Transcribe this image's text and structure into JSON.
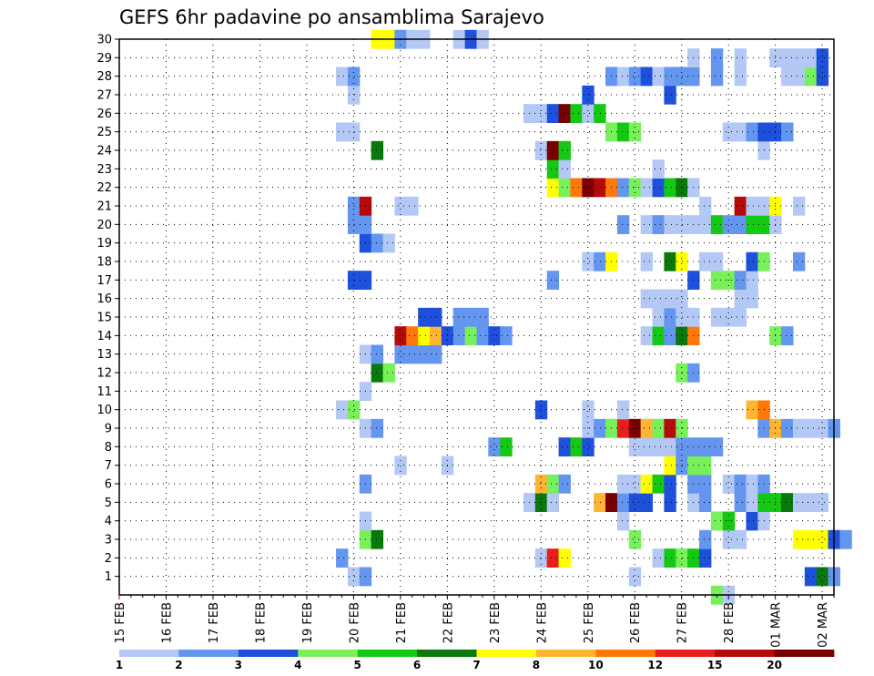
{
  "chart_data": {
    "type": "heatmap",
    "title": "GEFS 6hr padavine po ansamblima Sarajevo",
    "y_ticks": [
      "1",
      "2",
      "3",
      "4",
      "5",
      "6",
      "7",
      "8",
      "9",
      "10",
      "11",
      "12",
      "13",
      "14",
      "15",
      "16",
      "17",
      "18",
      "19",
      "20",
      "21",
      "22",
      "23",
      "24",
      "25",
      "26",
      "27",
      "28",
      "29",
      "30"
    ],
    "x_ticks": [
      "15 FEB",
      "16 FEB",
      "17 FEB",
      "18 FEB",
      "19 FEB",
      "20 FEB",
      "21 FEB",
      "22 FEB",
      "23 FEB",
      "24 FEB",
      "25 FEB",
      "26 FEB",
      "27 FEB",
      "28 FEB",
      "01 MAR",
      "02 MAR"
    ],
    "colorbar": {
      "labels": [
        "1",
        "2",
        "3",
        "4",
        "5",
        "6",
        "7",
        "8",
        "10",
        "12",
        "15",
        "20"
      ],
      "colors": [
        "#b4c8f5",
        "#6496f0",
        "#1e50dc",
        "#78f05a",
        "#14c814",
        "#0a780a",
        "#ffff00",
        "#ffb432",
        "#ff780a",
        "#e61e1e",
        "#b40a0a",
        "#780000"
      ]
    },
    "cells": [
      [
        1,
        20.0,
        1
      ],
      [
        1,
        20.25,
        2
      ],
      [
        1,
        26.0,
        1
      ],
      [
        1,
        29.75,
        3
      ],
      [
        1,
        30.0,
        6
      ],
      [
        1,
        30.25,
        2
      ],
      [
        2,
        19.75,
        2
      ],
      [
        2,
        24.0,
        1
      ],
      [
        2,
        24.25,
        10
      ],
      [
        2,
        24.5,
        7
      ],
      [
        2,
        26.5,
        1
      ],
      [
        2,
        26.75,
        5
      ],
      [
        2,
        27.0,
        4
      ],
      [
        2,
        27.25,
        5
      ],
      [
        2,
        27.5,
        3
      ],
      [
        3,
        20.25,
        4
      ],
      [
        3,
        20.5,
        6
      ],
      [
        3,
        26.0,
        4
      ],
      [
        3,
        27.5,
        2
      ],
      [
        3,
        28.0,
        1
      ],
      [
        3,
        28.25,
        1
      ],
      [
        3,
        29.5,
        7
      ],
      [
        3,
        29.75,
        7
      ],
      [
        3,
        30.0,
        7
      ],
      [
        3,
        30.25,
        3
      ],
      [
        3,
        30.5,
        2
      ],
      [
        4,
        20.25,
        1
      ],
      [
        4,
        25.75,
        1
      ],
      [
        4,
        27.75,
        4
      ],
      [
        4,
        28.0,
        5
      ],
      [
        4,
        28.5,
        3
      ],
      [
        4,
        28.75,
        1
      ],
      [
        5,
        23.75,
        1
      ],
      [
        5,
        24.0,
        6
      ],
      [
        5,
        24.25,
        1
      ],
      [
        5,
        25.25,
        8
      ],
      [
        5,
        25.5,
        12
      ],
      [
        5,
        25.75,
        2
      ],
      [
        5,
        26.0,
        3
      ],
      [
        5,
        26.25,
        3
      ],
      [
        5,
        26.75,
        3
      ],
      [
        5,
        27.25,
        1
      ],
      [
        5,
        27.5,
        2
      ],
      [
        5,
        28.25,
        2
      ],
      [
        5,
        28.5,
        1
      ],
      [
        5,
        28.75,
        5
      ],
      [
        5,
        29.0,
        5
      ],
      [
        5,
        29.25,
        6
      ],
      [
        5,
        29.5,
        1
      ],
      [
        5,
        29.75,
        1
      ],
      [
        5,
        30.0,
        1
      ],
      [
        6,
        20.25,
        2
      ],
      [
        6,
        24.0,
        8
      ],
      [
        6,
        24.25,
        4
      ],
      [
        6,
        24.5,
        2
      ],
      [
        6,
        25.75,
        1
      ],
      [
        6,
        26.0,
        1
      ],
      [
        6,
        26.25,
        7
      ],
      [
        6,
        26.5,
        5
      ],
      [
        6,
        26.75,
        3
      ],
      [
        6,
        27.25,
        2
      ],
      [
        6,
        27.5,
        2
      ],
      [
        6,
        28.0,
        1
      ],
      [
        6,
        28.25,
        2
      ],
      [
        6,
        28.5,
        1
      ],
      [
        6,
        28.75,
        2
      ],
      [
        7,
        21.0,
        1
      ],
      [
        7,
        22.0,
        1
      ],
      [
        7,
        26.75,
        7
      ],
      [
        7,
        27.0,
        2
      ],
      [
        7,
        27.25,
        4
      ],
      [
        7,
        27.5,
        4
      ],
      [
        8,
        23.0,
        2
      ],
      [
        8,
        23.25,
        5
      ],
      [
        8,
        24.5,
        3
      ],
      [
        8,
        24.75,
        5
      ],
      [
        8,
        25.0,
        3
      ],
      [
        8,
        26.0,
        1
      ],
      [
        8,
        26.25,
        1
      ],
      [
        8,
        26.5,
        1
      ],
      [
        8,
        26.75,
        1
      ],
      [
        8,
        27.0,
        2
      ],
      [
        8,
        27.25,
        2
      ],
      [
        8,
        27.5,
        2
      ],
      [
        8,
        27.75,
        2
      ],
      [
        9,
        20.25,
        1
      ],
      [
        9,
        20.5,
        2
      ],
      [
        9,
        25.0,
        1
      ],
      [
        9,
        25.25,
        2
      ],
      [
        9,
        25.5,
        4
      ],
      [
        9,
        25.75,
        10
      ],
      [
        9,
        26.0,
        12
      ],
      [
        9,
        26.25,
        8
      ],
      [
        9,
        26.5,
        4
      ],
      [
        9,
        26.75,
        11
      ],
      [
        9,
        27.0,
        4
      ],
      [
        9,
        28.75,
        2
      ],
      [
        9,
        29.0,
        8
      ],
      [
        9,
        29.25,
        2
      ],
      [
        9,
        29.5,
        1
      ],
      [
        9,
        29.75,
        1
      ],
      [
        9,
        30.0,
        1
      ],
      [
        9,
        30.25,
        2
      ],
      [
        10,
        19.75,
        1
      ],
      [
        10,
        20.0,
        4
      ],
      [
        10,
        24.0,
        3
      ],
      [
        10,
        25.0,
        1
      ],
      [
        10,
        25.75,
        1
      ],
      [
        10,
        28.5,
        8
      ],
      [
        10,
        28.75,
        9
      ],
      [
        11,
        20.25,
        1
      ],
      [
        12,
        20.5,
        6
      ],
      [
        12,
        20.75,
        4
      ],
      [
        12,
        27.0,
        4
      ],
      [
        12,
        27.25,
        2
      ],
      [
        13,
        20.25,
        1
      ],
      [
        13,
        20.5,
        2
      ],
      [
        13,
        21.0,
        2
      ],
      [
        13,
        21.25,
        2
      ],
      [
        13,
        21.5,
        2
      ],
      [
        13,
        21.75,
        2
      ],
      [
        14,
        21.0,
        11
      ],
      [
        14,
        21.25,
        9
      ],
      [
        14,
        21.5,
        7
      ],
      [
        14,
        21.75,
        8
      ],
      [
        14,
        22.0,
        3
      ],
      [
        14,
        22.25,
        2
      ],
      [
        14,
        22.5,
        4
      ],
      [
        14,
        22.75,
        2
      ],
      [
        14,
        23.0,
        3
      ],
      [
        14,
        23.25,
        2
      ],
      [
        14,
        26.25,
        1
      ],
      [
        14,
        26.5,
        5
      ],
      [
        14,
        26.75,
        2
      ],
      [
        14,
        27.0,
        6
      ],
      [
        14,
        27.25,
        9
      ],
      [
        14,
        29.0,
        4
      ],
      [
        14,
        29.25,
        2
      ],
      [
        15,
        21.5,
        3
      ],
      [
        15,
        21.75,
        3
      ],
      [
        15,
        22.25,
        2
      ],
      [
        15,
        22.5,
        2
      ],
      [
        15,
        22.75,
        2
      ],
      [
        15,
        26.5,
        1
      ],
      [
        15,
        26.75,
        2
      ],
      [
        15,
        27.0,
        1
      ],
      [
        15,
        27.25,
        1
      ],
      [
        15,
        27.75,
        1
      ],
      [
        15,
        28.0,
        1
      ],
      [
        15,
        28.25,
        1
      ],
      [
        16,
        26.25,
        1
      ],
      [
        16,
        26.5,
        1
      ],
      [
        16,
        26.75,
        1
      ],
      [
        16,
        27.0,
        1
      ],
      [
        16,
        28.25,
        1
      ],
      [
        16,
        28.5,
        1
      ],
      [
        17,
        20.0,
        3
      ],
      [
        17,
        20.25,
        3
      ],
      [
        17,
        24.25,
        2
      ],
      [
        17,
        27.25,
        3
      ],
      [
        17,
        27.75,
        4
      ],
      [
        17,
        28.0,
        4
      ],
      [
        17,
        28.25,
        2
      ],
      [
        17,
        28.5,
        1
      ],
      [
        18,
        25.0,
        1
      ],
      [
        18,
        25.25,
        2
      ],
      [
        18,
        25.5,
        7
      ],
      [
        18,
        26.25,
        1
      ],
      [
        18,
        26.75,
        6
      ],
      [
        18,
        27.0,
        7
      ],
      [
        18,
        27.5,
        1
      ],
      [
        18,
        27.75,
        1
      ],
      [
        18,
        28.5,
        3
      ],
      [
        18,
        28.75,
        4
      ],
      [
        18,
        29.5,
        2
      ],
      [
        19,
        20.25,
        3
      ],
      [
        19,
        20.5,
        2
      ],
      [
        19,
        20.75,
        1
      ],
      [
        20,
        20.0,
        2
      ],
      [
        20,
        20.25,
        2
      ],
      [
        20,
        25.75,
        2
      ],
      [
        20,
        26.25,
        1
      ],
      [
        20,
        26.5,
        2
      ],
      [
        20,
        26.75,
        1
      ],
      [
        20,
        27.0,
        1
      ],
      [
        20,
        27.25,
        1
      ],
      [
        20,
        27.5,
        1
      ],
      [
        20,
        27.75,
        5
      ],
      [
        20,
        28.0,
        2
      ],
      [
        20,
        28.25,
        2
      ],
      [
        20,
        28.5,
        5
      ],
      [
        20,
        28.75,
        5
      ],
      [
        20,
        29.0,
        1
      ],
      [
        21,
        20.0,
        2
      ],
      [
        21,
        20.25,
        11
      ],
      [
        21,
        21.0,
        1
      ],
      [
        21,
        21.25,
        1
      ],
      [
        21,
        27.5,
        1
      ],
      [
        21,
        28.25,
        11
      ],
      [
        21,
        28.5,
        1
      ],
      [
        21,
        28.75,
        1
      ],
      [
        21,
        29.0,
        7
      ],
      [
        21,
        29.5,
        1
      ],
      [
        22,
        24.25,
        7
      ],
      [
        22,
        24.5,
        4
      ],
      [
        22,
        24.75,
        9
      ],
      [
        22,
        25.0,
        12
      ],
      [
        22,
        25.25,
        11
      ],
      [
        22,
        25.5,
        9
      ],
      [
        22,
        25.75,
        2
      ],
      [
        22,
        26.0,
        4
      ],
      [
        22,
        26.25,
        1
      ],
      [
        22,
        26.5,
        3
      ],
      [
        22,
        26.75,
        5
      ],
      [
        22,
        27.0,
        6
      ],
      [
        22,
        27.25,
        1
      ],
      [
        23,
        24.25,
        5
      ],
      [
        23,
        24.5,
        1
      ],
      [
        23,
        26.5,
        1
      ],
      [
        24,
        20.5,
        6
      ],
      [
        24,
        24.0,
        1
      ],
      [
        24,
        24.25,
        12
      ],
      [
        24,
        24.5,
        5
      ],
      [
        24,
        28.75,
        1
      ],
      [
        25,
        19.75,
        1
      ],
      [
        25,
        20.0,
        1
      ],
      [
        25,
        25.5,
        4
      ],
      [
        25,
        25.75,
        5
      ],
      [
        25,
        26.0,
        4
      ],
      [
        25,
        28.0,
        1
      ],
      [
        25,
        28.25,
        1
      ],
      [
        25,
        28.5,
        2
      ],
      [
        25,
        28.75,
        3
      ],
      [
        25,
        29.0,
        3
      ],
      [
        25,
        29.25,
        2
      ],
      [
        26,
        23.75,
        1
      ],
      [
        26,
        24.0,
        1
      ],
      [
        26,
        24.25,
        3
      ],
      [
        26,
        24.5,
        12
      ],
      [
        26,
        24.75,
        5
      ],
      [
        26,
        25.0,
        1
      ],
      [
        26,
        25.25,
        5
      ],
      [
        27,
        20.0,
        1
      ],
      [
        27,
        25.0,
        3
      ],
      [
        27,
        26.75,
        3
      ],
      [
        28,
        19.75,
        1
      ],
      [
        28,
        20.0,
        2
      ],
      [
        28,
        25.5,
        2
      ],
      [
        28,
        25.75,
        1
      ],
      [
        28,
        26.0,
        2
      ],
      [
        28,
        26.25,
        3
      ],
      [
        28,
        26.5,
        1
      ],
      [
        28,
        26.75,
        2
      ],
      [
        28,
        27.0,
        2
      ],
      [
        28,
        27.25,
        2
      ],
      [
        28,
        27.75,
        2
      ],
      [
        28,
        28.25,
        1
      ],
      [
        28,
        29.25,
        1
      ],
      [
        28,
        29.5,
        1
      ],
      [
        28,
        29.75,
        4
      ],
      [
        28,
        30.0,
        3
      ],
      [
        29,
        27.25,
        1
      ],
      [
        29,
        27.75,
        2
      ],
      [
        29,
        28.25,
        1
      ],
      [
        29,
        29.0,
        1
      ],
      [
        29,
        29.25,
        1
      ],
      [
        29,
        29.5,
        1
      ],
      [
        29,
        29.75,
        1
      ],
      [
        29,
        30.0,
        3
      ],
      [
        30,
        20.5,
        7
      ],
      [
        30,
        20.75,
        7
      ],
      [
        30,
        21.0,
        2
      ],
      [
        30,
        21.25,
        1
      ],
      [
        30,
        21.5,
        1
      ],
      [
        30,
        22.25,
        1
      ],
      [
        30,
        22.5,
        3
      ],
      [
        30,
        22.75,
        1
      ],
      [
        0,
        27.75,
        4
      ],
      [
        0,
        28.0,
        1
      ]
    ]
  }
}
